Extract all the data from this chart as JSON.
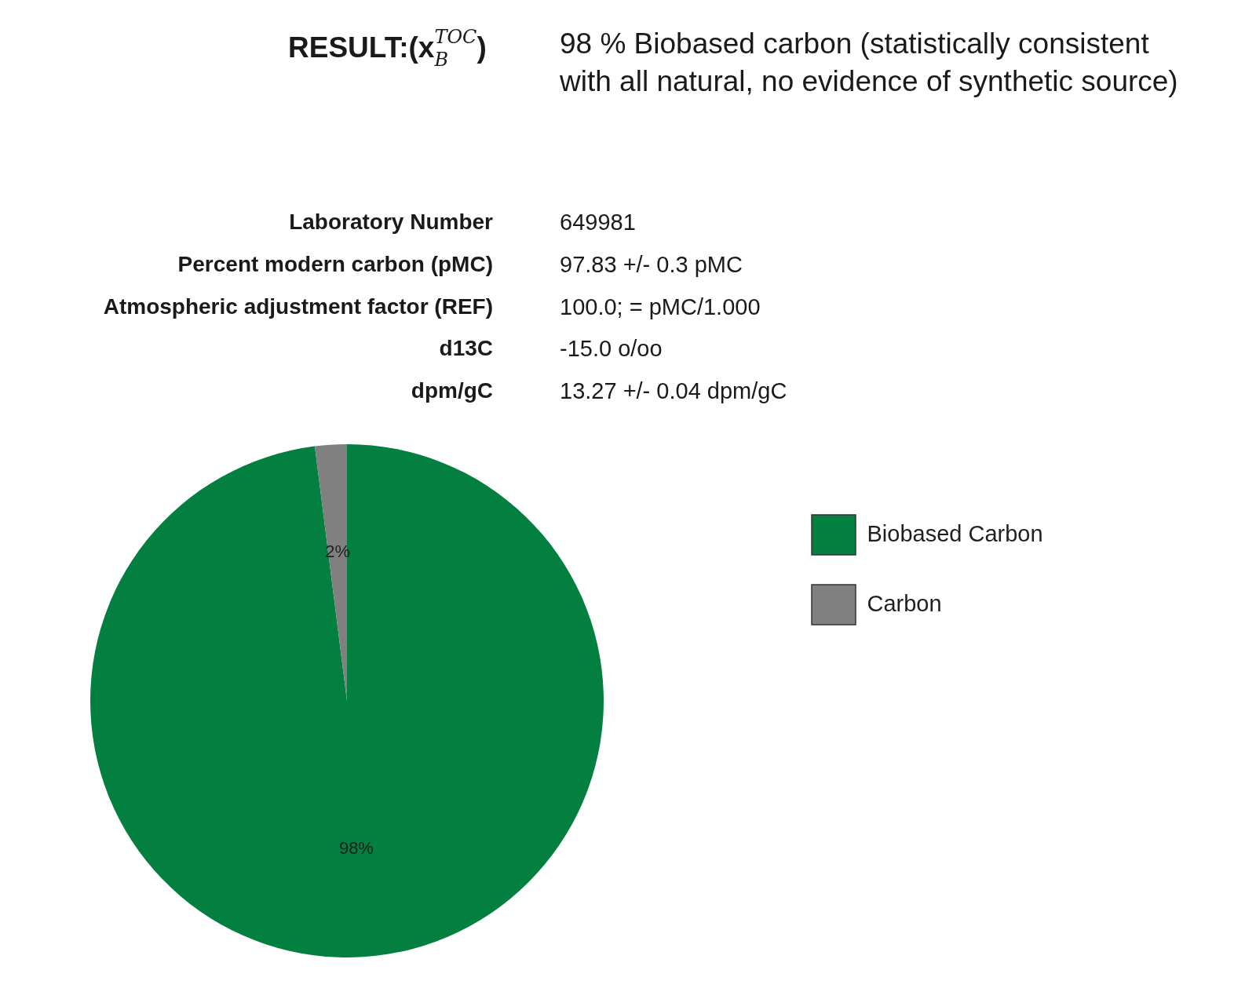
{
  "chart_data": {
    "type": "pie",
    "title": "RESULT:(x$_{B}$$^{TOC}$)",
    "subtitle": "98 % Biobased carbon (statistically consistent with all natural, no evidence of synthetic source)",
    "annotations": [
      "Laboratory Number",
      "649981",
      "Percent modern carbon (pMC)",
      "97.83 +/- 0.3 pMC",
      "Atmospheric adjustment factor (REF)",
      "100.0; = pMC/1.000",
      "d13C",
      "-15.0 o/oo",
      "dpm/gC",
      "13.27 +/- 0.04 dpm/gC"
    ],
    "categories": [
      "Biobased Carbon",
      "Carbon"
    ],
    "values": [
      98,
      2
    ],
    "colors": [
      "#038040",
      "#808080"
    ],
    "value_labels": [
      "98%",
      "2%"
    ],
    "legend": "right"
  }
}
